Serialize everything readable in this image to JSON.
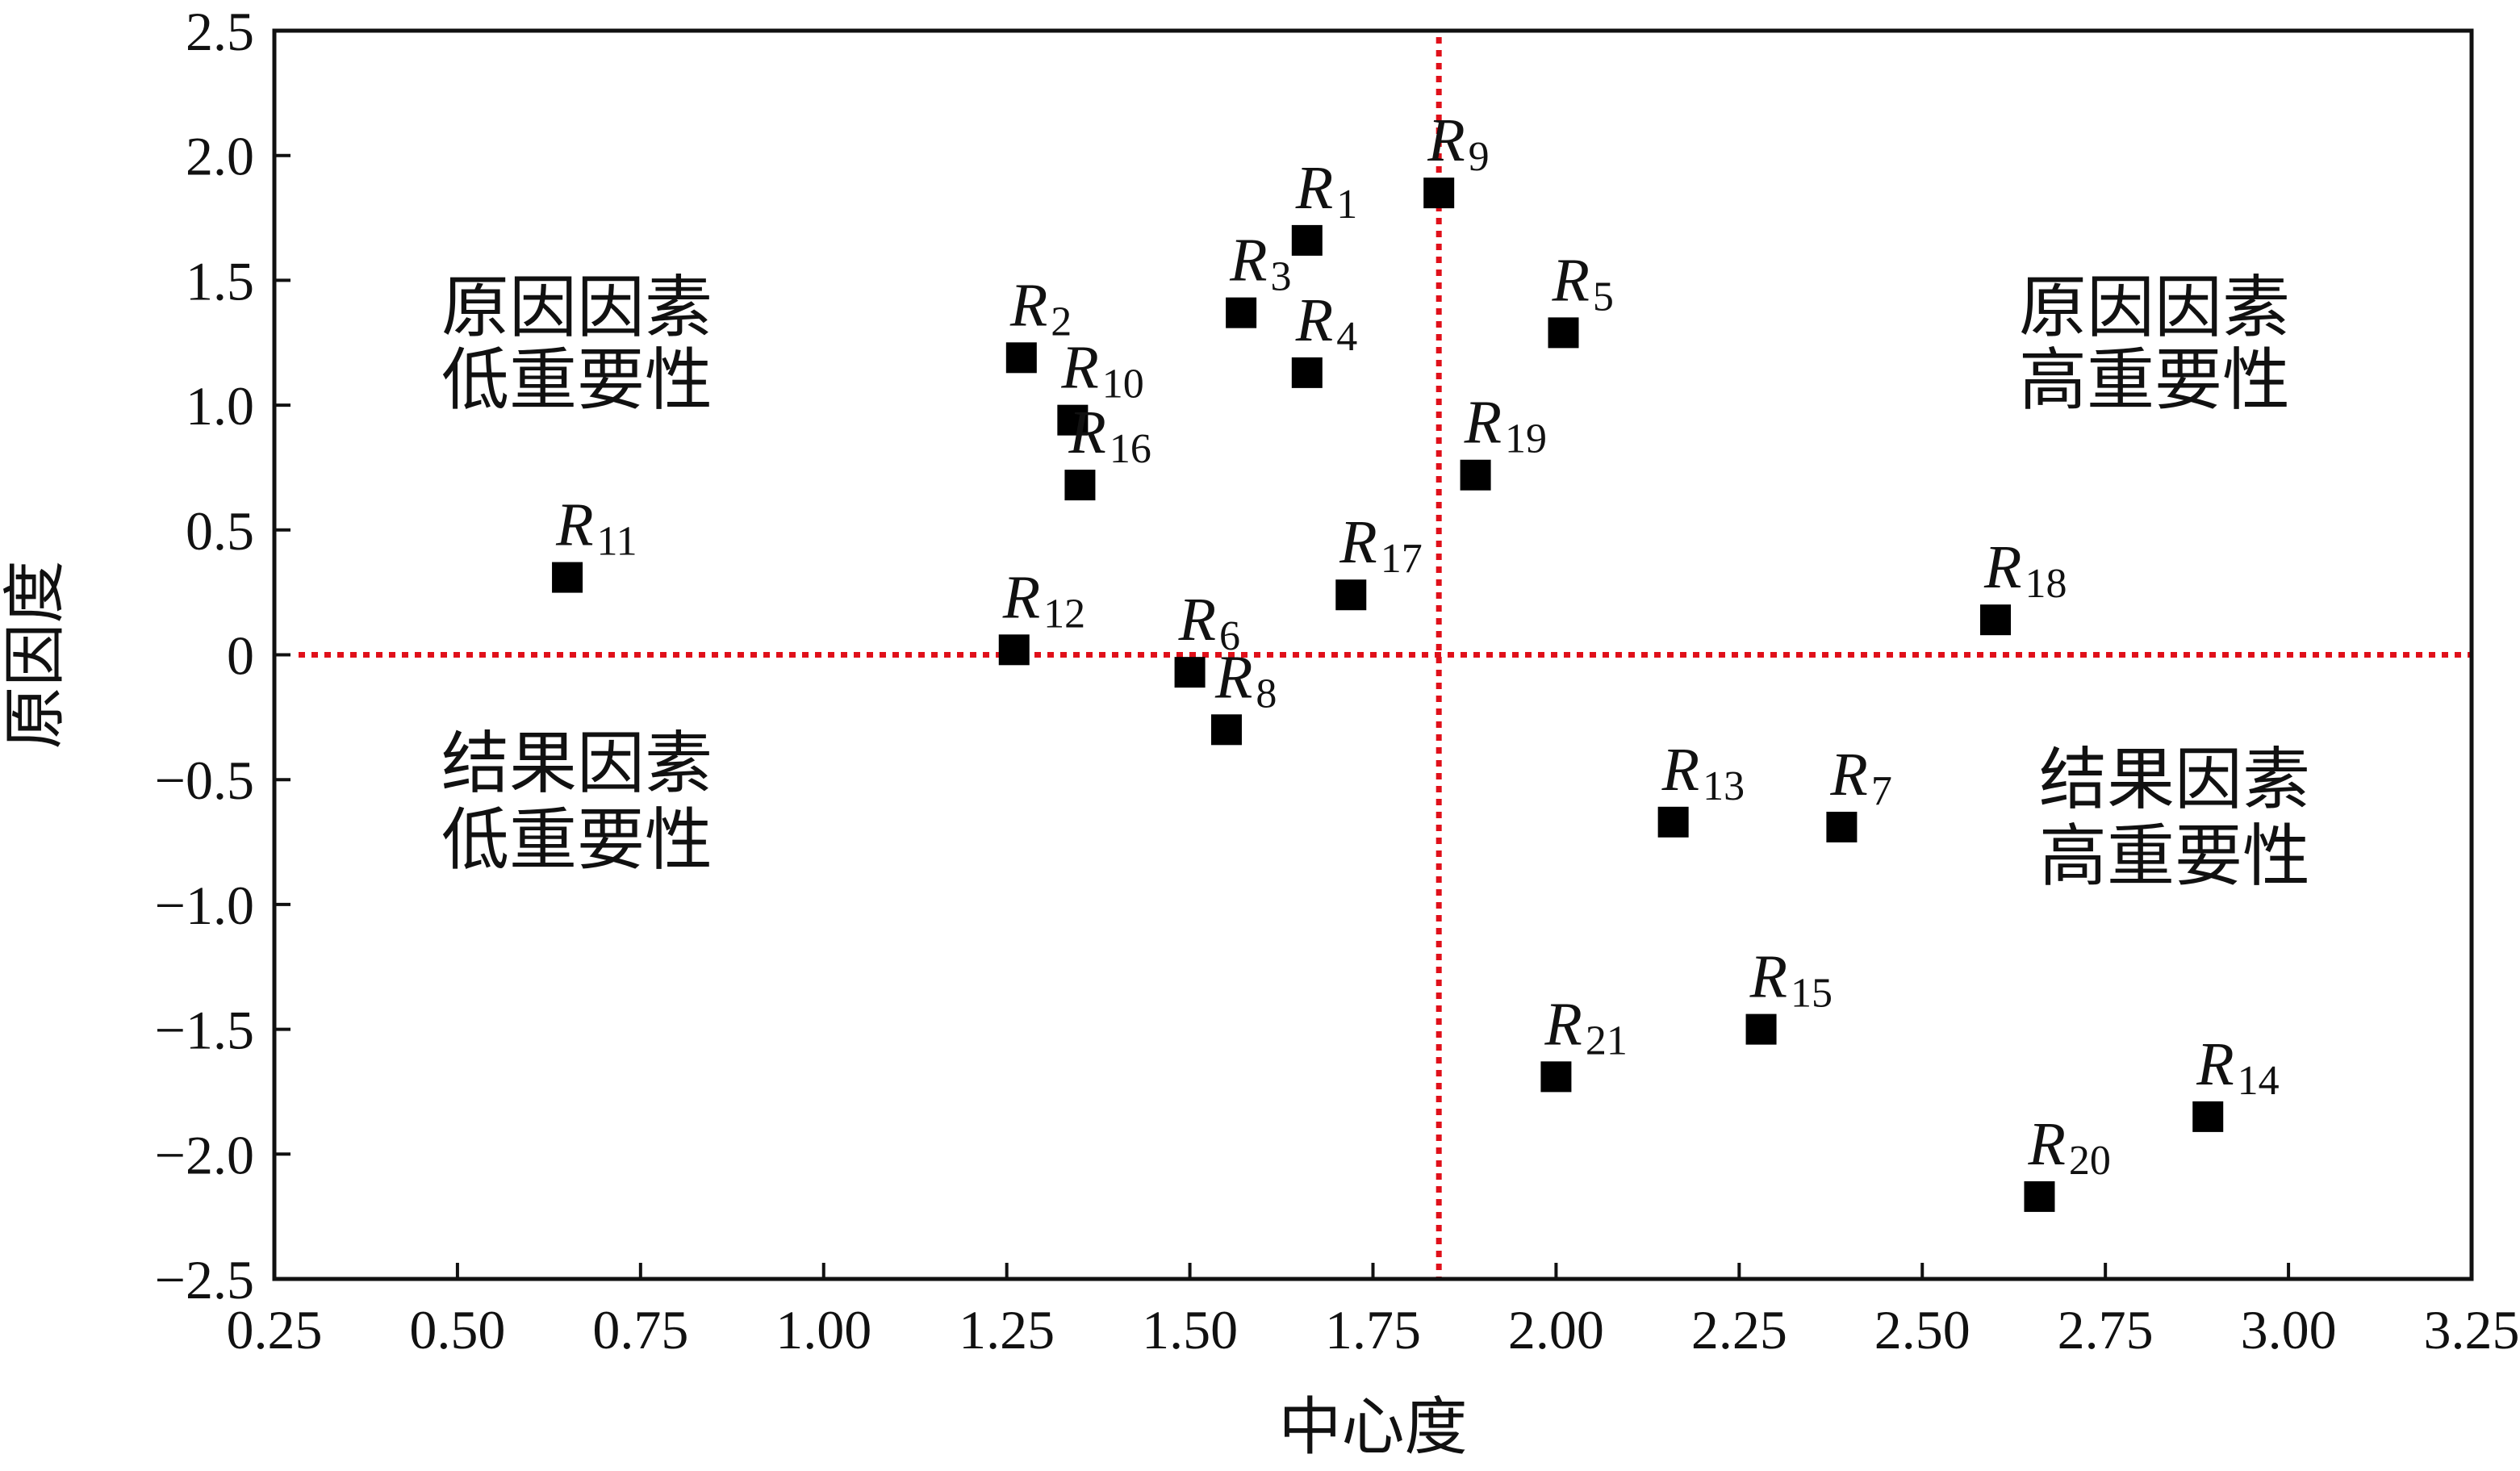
{
  "chart_data": {
    "type": "scatter",
    "xlabel": "中心度",
    "ylabel": "原因度",
    "xlim": [
      0.25,
      3.25
    ],
    "ylim": [
      -2.5,
      2.5
    ],
    "x_ticks": [
      "0.25",
      "0.50",
      "0.75",
      "1.00",
      "1.25",
      "1.50",
      "1.75",
      "2.00",
      "2.25",
      "2.50",
      "2.75",
      "3.00",
      "3.25"
    ],
    "y_ticks": [
      "2.5",
      "2.0",
      "1.5",
      "1.0",
      "0.5",
      "0",
      "−0.5",
      "−1.0",
      "−1.5",
      "−2.0",
      "−2.5"
    ],
    "x_tick_values": [
      0.25,
      0.5,
      0.75,
      1.0,
      1.25,
      1.5,
      1.75,
      2.0,
      2.25,
      2.5,
      2.75,
      3.0,
      3.25
    ],
    "y_tick_values": [
      2.5,
      2.0,
      1.5,
      1.0,
      0.5,
      0,
      -0.5,
      -1.0,
      -1.5,
      -2.0,
      -2.5
    ],
    "reference_lines": {
      "x": 1.84,
      "y": 0,
      "color": "#e0101a",
      "style": "dotted"
    },
    "marker": {
      "shape": "square",
      "color": "#000000"
    },
    "quadrant_labels": {
      "top_left": [
        "原因因素",
        "低重要性"
      ],
      "top_right": [
        "原因因素",
        "高重要性"
      ],
      "bottom_left": [
        "结果因素",
        "低重要性"
      ],
      "bottom_right": [
        "结果因素",
        "高重要性"
      ]
    },
    "points": [
      {
        "label": "R",
        "sub": "1",
        "x": 1.66,
        "y": 1.66
      },
      {
        "label": "R",
        "sub": "2",
        "x": 1.27,
        "y": 1.19
      },
      {
        "label": "R",
        "sub": "3",
        "x": 1.57,
        "y": 1.37
      },
      {
        "label": "R",
        "sub": "4",
        "x": 1.66,
        "y": 1.13
      },
      {
        "label": "R",
        "sub": "5",
        "x": 2.01,
        "y": 1.29
      },
      {
        "label": "R",
        "sub": "6",
        "x": 1.5,
        "y": -0.07
      },
      {
        "label": "R",
        "sub": "7",
        "x": 2.39,
        "y": -0.69
      },
      {
        "label": "R",
        "sub": "8",
        "x": 1.55,
        "y": -0.3
      },
      {
        "label": "R",
        "sub": "9",
        "x": 1.84,
        "y": 1.85
      },
      {
        "label": "R",
        "sub": "10",
        "x": 1.34,
        "y": 0.94
      },
      {
        "label": "R",
        "sub": "11",
        "x": 0.65,
        "y": 0.31
      },
      {
        "label": "R",
        "sub": "12",
        "x": 1.26,
        "y": 0.02
      },
      {
        "label": "R",
        "sub": "13",
        "x": 2.16,
        "y": -0.67
      },
      {
        "label": "R",
        "sub": "14",
        "x": 2.89,
        "y": -1.85
      },
      {
        "label": "R",
        "sub": "15",
        "x": 2.28,
        "y": -1.5
      },
      {
        "label": "R",
        "sub": "16",
        "x": 1.35,
        "y": 0.68
      },
      {
        "label": "R",
        "sub": "17",
        "x": 1.72,
        "y": 0.24
      },
      {
        "label": "R",
        "sub": "18",
        "x": 2.6,
        "y": 0.14
      },
      {
        "label": "R",
        "sub": "19",
        "x": 1.89,
        "y": 0.72
      },
      {
        "label": "R",
        "sub": "20",
        "x": 2.66,
        "y": -2.17
      },
      {
        "label": "R",
        "sub": "21",
        "x": 2.0,
        "y": -1.69
      }
    ]
  }
}
